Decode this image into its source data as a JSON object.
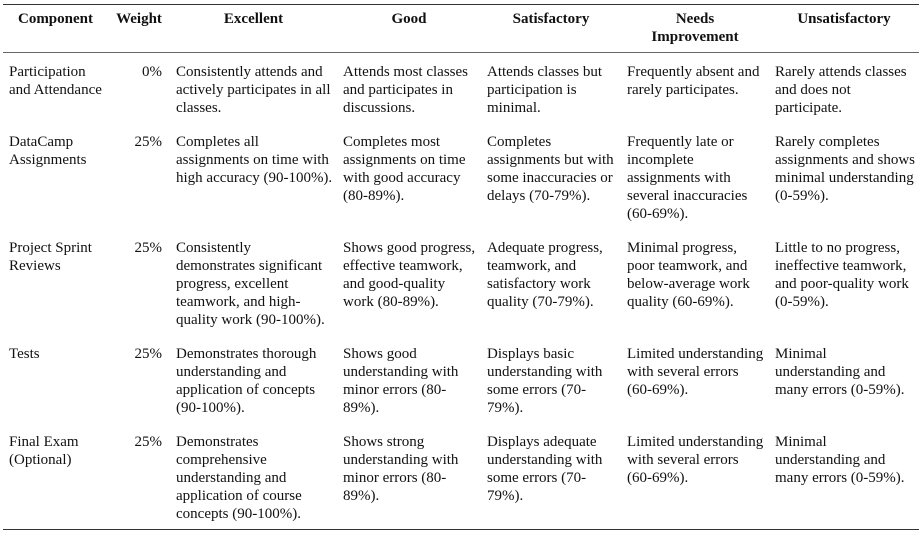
{
  "table": {
    "headers": [
      "Component",
      "Weight",
      "Excellent",
      "Good",
      "Satisfactory",
      "Needs Improvement",
      "Unsatisfactory"
    ],
    "rows": [
      {
        "component": "Participation and Attendance",
        "weight": "0%",
        "excellent": "Consistently attends and actively participates in all classes.",
        "good": "Attends most classes and participates in discussions.",
        "satisfactory": "Attends classes but participation is minimal.",
        "needs_improvement": "Frequently absent and rarely participates.",
        "unsatisfactory": "Rarely attends classes and does not participate."
      },
      {
        "component": "DataCamp Assignments",
        "weight": "25%",
        "excellent": "Completes all assignments on time with high accuracy (90-100%).",
        "good": "Completes most assignments on time with good accuracy (80-89%).",
        "satisfactory": "Completes assignments but with some inaccuracies or delays (70-79%).",
        "needs_improvement": "Frequently late or incomplete assignments with several inaccuracies (60-69%).",
        "unsatisfactory": "Rarely completes assignments and shows minimal understanding (0-59%)."
      },
      {
        "component": "Project Sprint Reviews",
        "weight": "25%",
        "excellent": "Consistently demonstrates significant progress, excellent teamwork, and high-quality work (90-100%).",
        "good": "Shows good progress, effective teamwork, and good-quality work (80-89%).",
        "satisfactory": "Adequate progress, teamwork, and satisfactory work quality (70-79%).",
        "needs_improvement": "Minimal progress, poor teamwork, and below-average work quality (60-69%).",
        "unsatisfactory": "Little to no progress, ineffective teamwork, and poor-quality work (0-59%)."
      },
      {
        "component": "Tests",
        "weight": "25%",
        "excellent": "Demonstrates thorough understanding and application of concepts (90-100%).",
        "good": "Shows good understanding with minor errors (80-89%).",
        "satisfactory": "Displays basic understanding with some errors (70-79%).",
        "needs_improvement": "Limited understanding with several errors (60-69%).",
        "unsatisfactory": "Minimal understanding and many errors (0-59%)."
      },
      {
        "component": "Final Exam (Optional)",
        "weight": "25%",
        "excellent": "Demonstrates comprehensive understanding and application of course concepts (90-100%).",
        "good": "Shows strong understanding with minor errors (80-89%).",
        "satisfactory": "Displays adequate understanding with some errors (70-79%).",
        "needs_improvement": "Limited understanding with several errors (60-69%).",
        "unsatisfactory": "Minimal understanding and many errors (0-59%)."
      }
    ]
  }
}
